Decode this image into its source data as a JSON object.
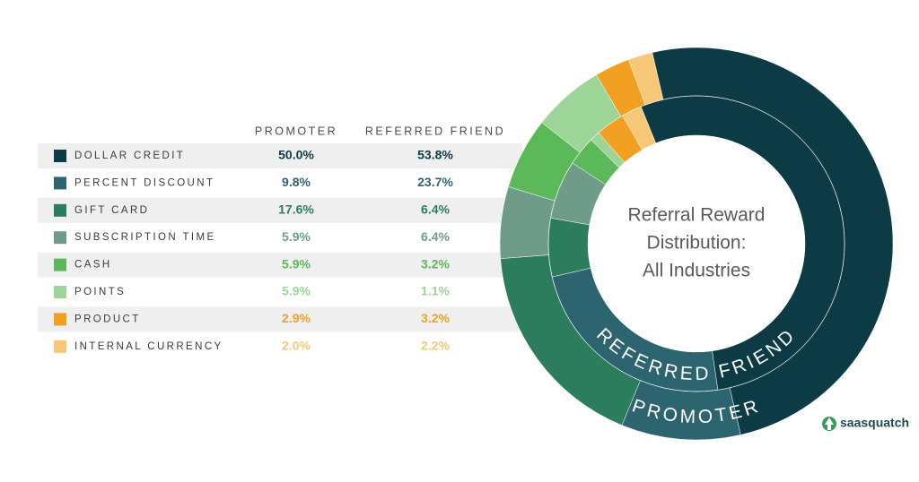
{
  "chart_data": {
    "type": "donut",
    "title": [
      "Referral Reward",
      "Distribution:",
      "All Industries"
    ],
    "categories": [
      "DOLLAR CREDIT",
      "PERCENT DISCOUNT",
      "GIFT CARD",
      "SUBSCRIPTION TIME",
      "CASH",
      "POINTS",
      "PRODUCT",
      "INTERNAL CURRENCY"
    ],
    "colors": [
      "#0d3b45",
      "#2c6470",
      "#2b7d5e",
      "#6f9c88",
      "#5cb95a",
      "#9dd497",
      "#f1a021",
      "#f7c778"
    ],
    "series": [
      {
        "name": "PROMOTER",
        "values": [
          50.0,
          9.8,
          17.6,
          5.9,
          5.9,
          5.9,
          2.9,
          2.0
        ],
        "value_labels": [
          "50.0%",
          "9.8%",
          "17.6%",
          "5.9%",
          "5.9%",
          "5.9%",
          "2.9%",
          "2.0%"
        ]
      },
      {
        "name": "REFERRED FRIEND",
        "values": [
          53.8,
          23.7,
          6.4,
          6.4,
          3.2,
          1.1,
          3.2,
          2.2
        ],
        "value_labels": [
          "53.8%",
          "23.7%",
          "6.4%",
          "6.4%",
          "3.2%",
          "1.1%",
          "3.2%",
          "2.2%"
        ]
      }
    ]
  },
  "brand": "saasquatch"
}
